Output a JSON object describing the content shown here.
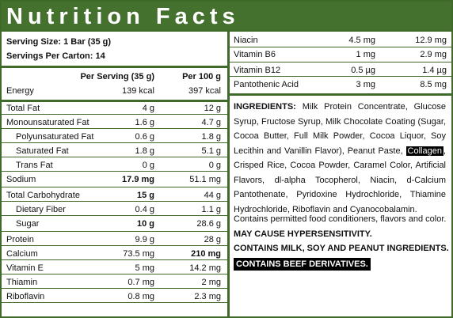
{
  "title": "Nutrition Facts",
  "serving": {
    "size": "Serving Size: 1 Bar (35 g)",
    "per_carton": "Servings Per Carton: 14"
  },
  "columns": {
    "per_serving": "Per Serving (35 g)",
    "per_100g": "Per 100 g"
  },
  "left_rows": [
    {
      "name": "Energy",
      "ps": "139 kcal",
      "p100": "397 kcal"
    },
    {
      "name": "Total Fat",
      "ps": "4 g",
      "p100": "12 g"
    },
    {
      "name": "Monounsaturated Fat",
      "ps": "1.6 g",
      "p100": "4.7 g"
    },
    {
      "name": "Polyunsaturated Fat",
      "ps": "0.6 g",
      "p100": "1.8 g"
    },
    {
      "name": "Saturated Fat",
      "ps": "1.8 g",
      "p100": "5.1 g"
    },
    {
      "name": "Trans Fat",
      "ps": "0 g",
      "p100": "0 g"
    },
    {
      "name": "Sodium",
      "ps": "17.9 mg",
      "p100": "51.1 mg"
    },
    {
      "name": "Total Carbohydrate",
      "ps": "15 g",
      "p100": "44 g"
    },
    {
      "name": "Dietary Fiber",
      "ps": "0.4 g",
      "p100": "1.1 g"
    },
    {
      "name": "Sugar",
      "ps": "10 g",
      "p100": "28.6 g"
    },
    {
      "name": "Protein",
      "ps": "9.9 g",
      "p100": "28 g"
    },
    {
      "name": "Calcium",
      "ps": "73.5 mg",
      "p100": "210 mg"
    },
    {
      "name": "Vitamin E",
      "ps": "5 mg",
      "p100": "14.2 mg"
    },
    {
      "name": "Thiamin",
      "ps": "0.7 mg",
      "p100": "2 mg"
    },
    {
      "name": "Riboflavin",
      "ps": "0.8 mg",
      "p100": "2.3 mg"
    }
  ],
  "right_rows": [
    {
      "name": "Niacin",
      "ps": "4.5 mg",
      "p100": "12.9 mg"
    },
    {
      "name": "Vitamin B6",
      "ps": "1 mg",
      "p100": "2.9 mg"
    },
    {
      "name": "Vitamin B12",
      "ps": "0.5 µg",
      "p100": "1.4 µg"
    },
    {
      "name": "Pantothenic Acid",
      "ps": "3 mg",
      "p100": "8.5 mg"
    }
  ],
  "ingredients": {
    "label": "INGREDIENTS:",
    "text_before": " Milk Protein Concentrate, Glucose Syrup, Fructose Syrup, Milk Chocolate Coating (Sugar, Cocoa Butter, Full Milk Powder, Cocoa Liquor, Soy Lecithin and Vanillin Flavor), Peanut Paste, ",
    "highlight": "Collagen",
    "text_after": ", Crisped Rice, Cocoa Powder, Caramel Color, Artificial Flavors, dl-alpha Tocopherol, Niacin, d-Calcium Pantothenate, Pyridoxine Hydrochloride, Thiamine Hydrochloride, Riboflavin and Cyanocobalamin."
  },
  "notes": {
    "conditioners": "Contains permitted food conditioners, flavors and color.",
    "hypersensitivity": "MAY CAUSE HYPERSENSITIVITY.",
    "allergens": "CONTAINS MILK, SOY AND PEANUT INGREDIENTS.",
    "beef": "CONTAINS BEEF DERIVATIVES."
  },
  "colors": {
    "brand_green": "#45712e",
    "rule_green": "#3f6a2a"
  }
}
